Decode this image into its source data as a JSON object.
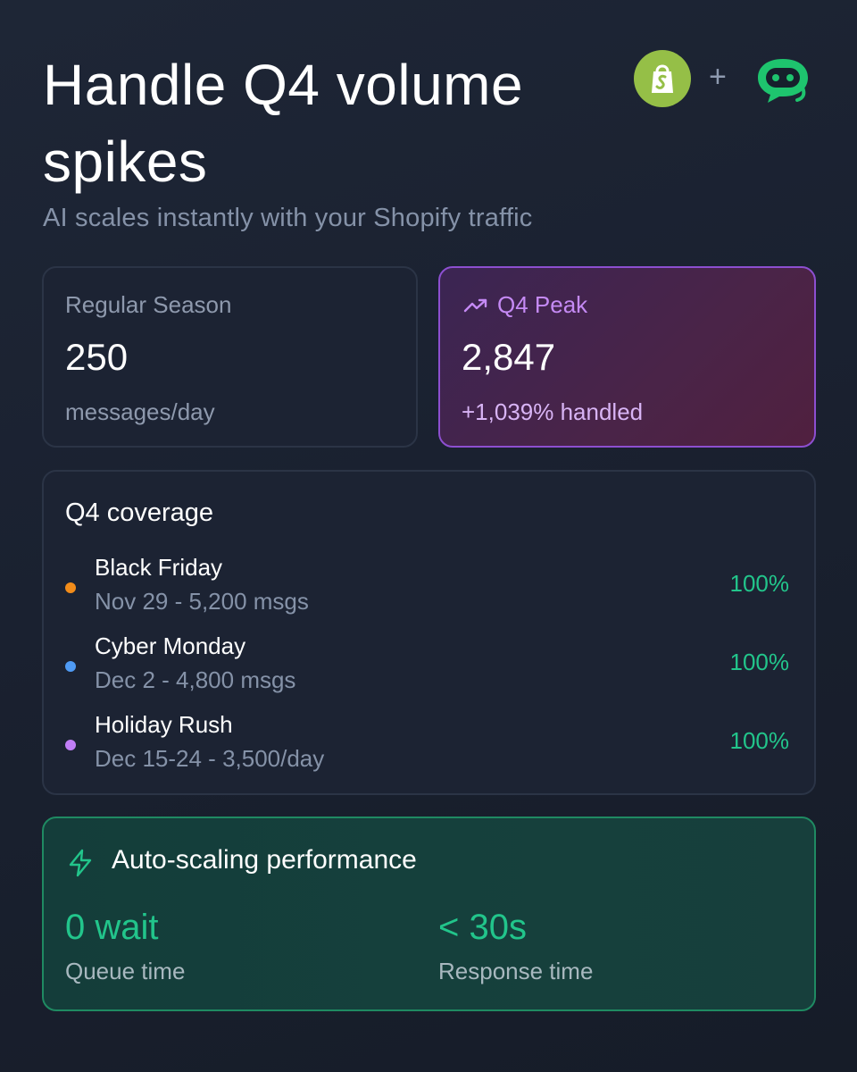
{
  "header": {
    "title": "Handle Q4 volume spikes",
    "subtitle": "AI scales instantly with your Shopify traffic",
    "logos": {
      "left_icon": "shopify-bag-icon",
      "separator": "+",
      "right_icon": "chat-bot-icon"
    }
  },
  "stats": {
    "regular": {
      "label": "Regular Season",
      "value": "250",
      "unit": "messages/day"
    },
    "peak": {
      "icon": "trending-up-icon",
      "label": "Q4 Peak",
      "value": "2,847",
      "change": "+1,039% handled"
    }
  },
  "coverage": {
    "title": "Q4 coverage",
    "events": [
      {
        "name": "Black Friday",
        "detail": "Nov 29 - 5,200 msgs",
        "percent": "100%",
        "dot_color": "#f28c1a"
      },
      {
        "name": "Cyber Monday",
        "detail": "Dec 2 - 4,800 msgs",
        "percent": "100%",
        "dot_color": "#4f9bf5"
      },
      {
        "name": "Holiday Rush",
        "detail": "Dec 15-24 - 3,500/day",
        "percent": "100%",
        "dot_color": "#c17ef7"
      }
    ]
  },
  "autoscale": {
    "icon": "lightning-bolt-icon",
    "title": "Auto-scaling performance",
    "metrics": [
      {
        "value": "0 wait",
        "label": "Queue time"
      },
      {
        "value": "< 30s",
        "label": "Response time"
      }
    ]
  },
  "colors": {
    "accent_green": "#22c58b",
    "accent_purple": "#c58af5",
    "background": "#1a2130"
  }
}
